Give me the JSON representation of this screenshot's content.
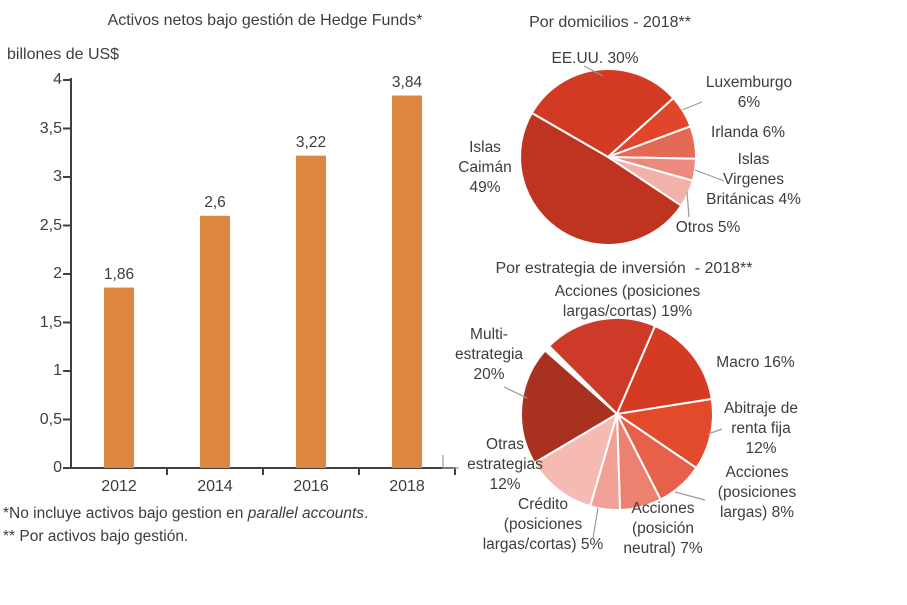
{
  "chart_data": [
    {
      "id": "bars",
      "type": "bar",
      "title": "Activos netos bajo gestión de Hedge Funds*",
      "ylabel": "billones de US$",
      "xlabel": "",
      "categories": [
        "2012",
        "2014",
        "2016",
        "2018"
      ],
      "values": [
        1.86,
        2.6,
        3.22,
        3.84
      ],
      "value_labels": [
        "1,86",
        "2,6",
        "3,22",
        "3,84"
      ],
      "ylim": [
        0,
        4
      ],
      "yticks": [
        {
          "v": 0,
          "label": "0"
        },
        {
          "v": 0.5,
          "label": "0,5"
        },
        {
          "v": 1,
          "label": "1"
        },
        {
          "v": 1.5,
          "label": "1,5"
        },
        {
          "v": 2,
          "label": "2"
        },
        {
          "v": 2.5,
          "label": "2,5"
        },
        {
          "v": 3,
          "label": "3"
        },
        {
          "v": 3.5,
          "label": "3,5"
        },
        {
          "v": 4,
          "label": "4"
        }
      ],
      "grid": false,
      "bar_color": "#DD8741",
      "axis_color": "#404040"
    },
    {
      "id": "pie_domicilios",
      "type": "pie",
      "title": "Por domicilios - 2018**",
      "start_angle_deg_clockwise_from_top": 300,
      "slices": [
        {
          "key": "eeuu",
          "name": "EE.UU.",
          "pct": 30,
          "color": "#D23A24",
          "label_lines": [
            "EE.UU. 30%"
          ]
        },
        {
          "key": "luxemburgo",
          "name": "Luxemburgo",
          "pct": 6,
          "color": "#E1462A",
          "label_lines": [
            "Luxemburgo",
            "6%"
          ]
        },
        {
          "key": "irlanda",
          "name": "Irlanda",
          "pct": 6,
          "color": "#E56A56",
          "label_lines": [
            "Irlanda 6%"
          ]
        },
        {
          "key": "islas-virgenes-britanicas",
          "name": "Islas Virgenes Británicas",
          "pct": 4,
          "color": "#EC8B7D",
          "label_lines": [
            "Islas",
            "Virgenes",
            "Británicas 4%"
          ]
        },
        {
          "key": "otros",
          "name": "Otros",
          "pct": 5,
          "color": "#F3B2A9",
          "label_lines": [
            "Otros 5%"
          ]
        },
        {
          "key": "islas-caiman",
          "name": "Islas Caimán",
          "pct": 49,
          "color": "#BE3420",
          "label_lines": [
            "Islas",
            "Caimán",
            "49%"
          ]
        }
      ]
    },
    {
      "id": "pie_estrategia",
      "type": "pie",
      "title": "Por estrategia de inversión  - 2018**",
      "start_angle_deg_clockwise_from_top": 315,
      "slices": [
        {
          "key": "acciones-largas-cortas",
          "name": "Acciones (posiciones largas/cortas)",
          "pct": 19,
          "color": "#CE3A28",
          "label_lines": [
            "Acciones (posiciones",
            "largas/cortas) 19%"
          ]
        },
        {
          "key": "macro",
          "name": "Macro",
          "pct": 16,
          "color": "#D53A22",
          "label_lines": [
            "Macro 16%"
          ]
        },
        {
          "key": "abitraje-renta-fija",
          "name": "Abitraje de renta fija",
          "pct": 12,
          "color": "#E24A2B",
          "label_lines": [
            "Abitraje de",
            "renta fija",
            "12%"
          ]
        },
        {
          "key": "acciones-largas",
          "name": "Acciones (posiciones largas)",
          "pct": 8,
          "color": "#E6604A",
          "label_lines": [
            "Acciones",
            "(posiciones",
            "largas) 8%"
          ]
        },
        {
          "key": "acciones-neutral",
          "name": "Acciones (posición neutral)",
          "pct": 7,
          "color": "#EC8170",
          "label_lines": [
            "Acciones",
            "(posición",
            "neutral) 7%"
          ]
        },
        {
          "key": "credito",
          "name": "Crédito (posiciones largas/cortas)",
          "pct": 5,
          "color": "#F1A195",
          "label_lines": [
            "Crédito",
            "(posiciones",
            "largas/cortas) 5%"
          ]
        },
        {
          "key": "otras-estrategias",
          "name": "Otras estrategias",
          "pct": 12,
          "color": "#F5BBB3",
          "label_lines": [
            "Otras",
            "estrategias",
            "12%"
          ]
        },
        {
          "key": "multi-estrategia",
          "name": "Multi-estrategia",
          "pct": 20,
          "color": "#A93120",
          "label_lines": [
            "Multi-",
            "estrategia",
            "20%"
          ]
        }
      ]
    }
  ],
  "footnotes": {
    "line1_prefix": "*No incluye activos bajo gestion en ",
    "line1_italic": "parallel accounts",
    "line1_suffix": ".",
    "line2": "** Por activos bajo gestión."
  }
}
